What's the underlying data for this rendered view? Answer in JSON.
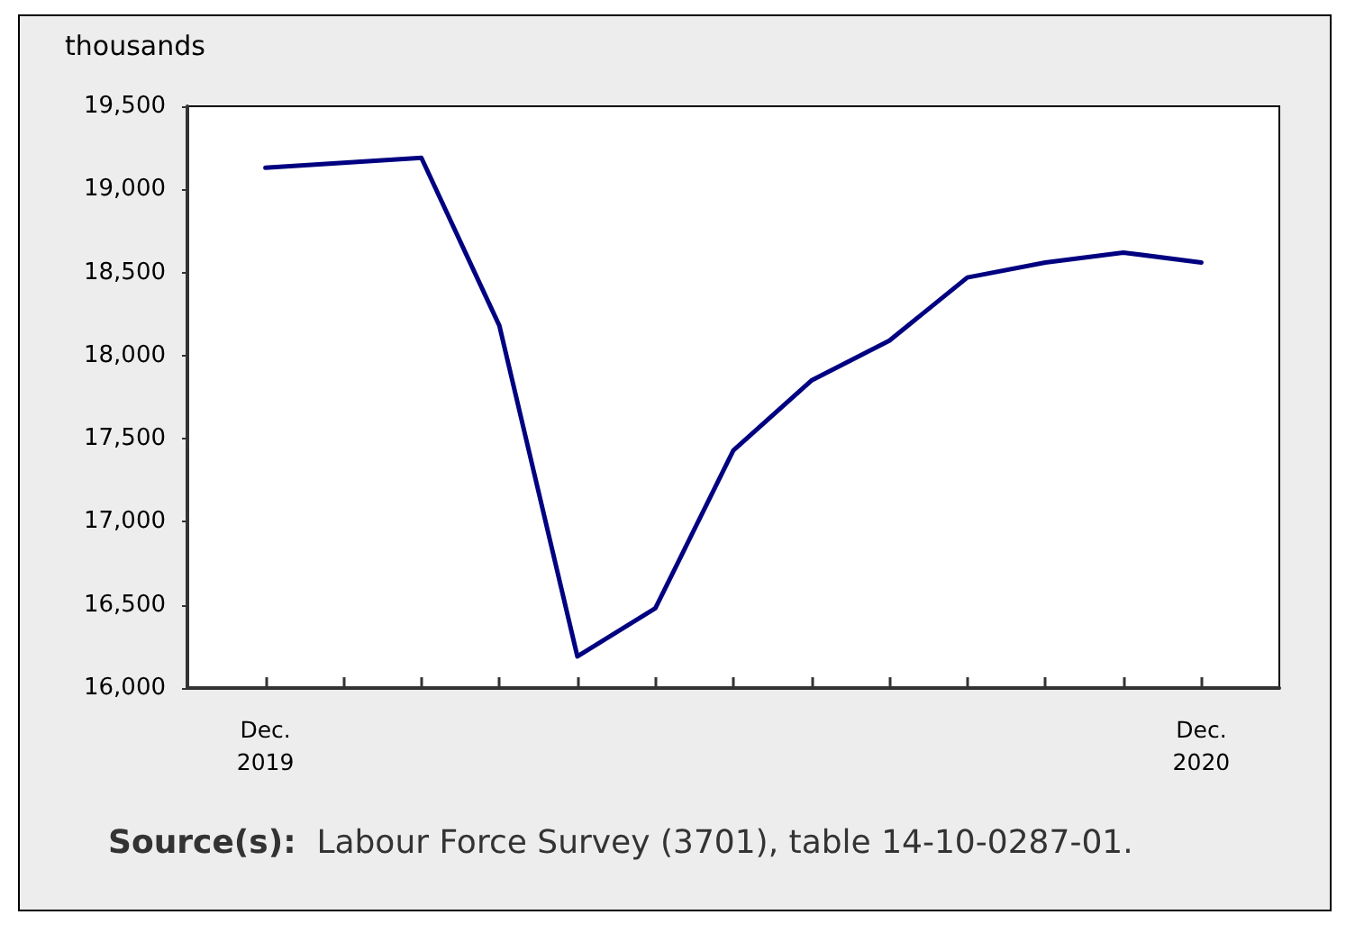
{
  "chart_data": {
    "type": "line",
    "ylabel": "thousands",
    "categories": [
      "Dec.\n2019",
      null,
      null,
      null,
      null,
      null,
      null,
      null,
      null,
      null,
      null,
      null,
      "Dec.\n2020"
    ],
    "series": [
      {
        "color": "#000080",
        "values": [
          19130,
          19160,
          19190,
          18180,
          16190,
          16480,
          17430,
          17850,
          18090,
          18470,
          18560,
          18620,
          18560
        ]
      }
    ],
    "ylim": [
      16000,
      19500
    ],
    "yticks": [
      {
        "value": 16000,
        "label": "16,000"
      },
      {
        "value": 16500,
        "label": "16,500"
      },
      {
        "value": 17000,
        "label": "17,000"
      },
      {
        "value": 17500,
        "label": "17,500"
      },
      {
        "value": 18000,
        "label": "18,000"
      },
      {
        "value": 18500,
        "label": "18,500"
      },
      {
        "value": 19000,
        "label": "19,000"
      },
      {
        "value": 19500,
        "label": "19,500"
      }
    ],
    "grid": false,
    "marker": "none",
    "line_style": "solid",
    "annotations": [
      "Source(s): Labour Force Survey (3701), table 14-10-0287-01."
    ]
  }
}
